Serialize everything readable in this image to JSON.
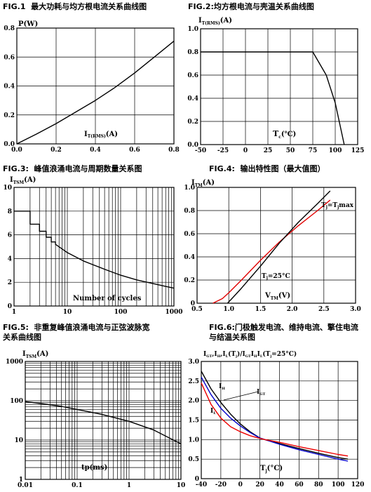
{
  "chart_data": [
    {
      "type": "line",
      "fig_label": "FIG.1",
      "title": "最大功耗与均方根电流关系曲线图",
      "ylabel": "P(W)",
      "xlabel_main": "I",
      "xlabel_sub": "T(RMS)",
      "xlabel_unit": "(A)",
      "xlim": [
        0,
        0.8
      ],
      "ylim": [
        0,
        0.8
      ],
      "xticks": [
        "0.0",
        "0.2",
        "0.4",
        "0.6",
        "0.8"
      ],
      "yticks": [
        "0.0",
        "0.2",
        "0.4",
        "0.6",
        "0.8"
      ],
      "grid": true,
      "series": [
        {
          "color": "#000000",
          "x": [
            0,
            0.1,
            0.2,
            0.3,
            0.4,
            0.5,
            0.6,
            0.7,
            0.8
          ],
          "y": [
            0,
            0.068,
            0.14,
            0.22,
            0.3,
            0.39,
            0.49,
            0.6,
            0.71
          ]
        }
      ]
    },
    {
      "type": "line",
      "fig_label": "FIG.2:",
      "title": "均方根电流与壳温关系曲线图",
      "ylabel_main": "I",
      "ylabel_sub": "T(RMS)",
      "ylabel_unit": "(A)",
      "xlabel_main": "T",
      "xlabel_sub": "c",
      "xlabel_unit": "(℃)",
      "xlim": [
        -50,
        125
      ],
      "ylim": [
        0,
        1.0
      ],
      "xticks": [
        "-50",
        "-25",
        "0",
        "25",
        "50",
        "75",
        "100",
        "125"
      ],
      "yticks": [
        "0.0",
        "0.2",
        "0.4",
        "0.6",
        "0.8",
        "1.0"
      ],
      "grid": true,
      "series": [
        {
          "color": "#000000",
          "x": [
            -50,
            75,
            90,
            100,
            110
          ],
          "y": [
            0.8,
            0.8,
            0.6,
            0.36,
            0.0
          ]
        }
      ]
    },
    {
      "type": "line",
      "fig_label": "FIG.3:",
      "title": "峰值浪涌电流与周期数量关系图",
      "ylabel_main": "I",
      "ylabel_sub": "TSM",
      "ylabel_unit": "(A)",
      "xlabel": "Number of cycles",
      "xscale": "log",
      "xlim": [
        1,
        1000
      ],
      "ylim": [
        0,
        10
      ],
      "xticks": [
        "1",
        "10",
        "100",
        "1000"
      ],
      "yticks": [
        "0",
        "2",
        "4",
        "6",
        "8",
        "10"
      ],
      "grid": true,
      "series": [
        {
          "color": "#000000",
          "x": [
            1,
            2,
            2,
            3,
            3,
            4,
            4,
            5,
            5,
            6,
            6,
            10,
            20,
            50,
            100,
            200,
            400,
            700,
            1000
          ],
          "y": [
            8.0,
            8.0,
            6.9,
            6.9,
            6.3,
            6.3,
            5.8,
            5.8,
            5.4,
            5.4,
            5.2,
            4.5,
            3.8,
            3.1,
            2.6,
            2.2,
            1.9,
            1.65,
            1.5
          ]
        }
      ]
    },
    {
      "type": "line",
      "fig_label": "FIG.4:",
      "title": "输出特性图（最大值图）",
      "ylabel_main": "I",
      "ylabel_sub": "TM",
      "ylabel_unit": "(A)",
      "xlabel_main": "V",
      "xlabel_sub": "TM",
      "xlabel_unit": "(V)",
      "xlim": [
        0.5,
        3.0
      ],
      "ylim": [
        0,
        1.0
      ],
      "xticks": [
        "0.5",
        "1.0",
        "1.5",
        "2.0",
        "2.5",
        "3.0"
      ],
      "yticks": [
        "0",
        "0.2",
        "0.4",
        "0.6",
        "0.8",
        "1.0"
      ],
      "grid": true,
      "series": [
        {
          "name": "T",
          "name_sub": "j",
          "name_tail": "=T",
          "name_tail_sub": "j",
          "name_end": "max",
          "color": "#e00000",
          "x": [
            0.75,
            0.9,
            1.0,
            1.2,
            1.5,
            1.8,
            2.1,
            2.4,
            2.6
          ],
          "y": [
            0.0,
            0.04,
            0.09,
            0.2,
            0.37,
            0.53,
            0.67,
            0.8,
            0.89
          ]
        },
        {
          "name": "T",
          "name_sub": "j",
          "name_tail": "=25°C",
          "color": "#000000",
          "x": [
            0.98,
            1.05,
            1.2,
            1.5,
            1.8,
            2.1,
            2.4,
            2.6
          ],
          "y": [
            0.0,
            0.04,
            0.13,
            0.32,
            0.52,
            0.7,
            0.86,
            0.97
          ]
        }
      ]
    },
    {
      "type": "line",
      "fig_label": "FIG.5:",
      "title": "非重复峰值浪涌电流与正弦波脉宽",
      "title_line2": "关系曲线图",
      "ylabel_main": "I",
      "ylabel_sub": "TSM",
      "ylabel_unit": "(A)",
      "xlabel": "tp(ms)",
      "xscale": "log",
      "yscale": "log",
      "xlim": [
        0.01,
        10
      ],
      "ylim": [
        1,
        1000
      ],
      "xticks": [
        "0.01",
        "0.1",
        "1",
        "10"
      ],
      "yticks": [
        "1",
        "10",
        "100",
        "1000"
      ],
      "grid": true,
      "series": [
        {
          "color": "#000000",
          "x": [
            0.01,
            0.02,
            0.05,
            0.1,
            0.3,
            1,
            3,
            10
          ],
          "y": [
            95,
            85,
            72,
            60,
            45,
            30,
            18,
            8
          ]
        }
      ]
    },
    {
      "type": "line",
      "fig_label": "FIG.6:",
      "title": "门极触发电流、维持电流、擎住电流",
      "title_line2": "与结温关系图",
      "ylabel": "I_GT,I_H,I_L(T_j)/I_GT,I_H,I_L(T_j=25°C)",
      "ylabel_parts": [
        "I",
        "GT",
        ",I",
        "H",
        ",I",
        "L",
        "(T",
        "j",
        ")/I",
        "GT",
        "I",
        "H",
        "I",
        "L",
        "(T",
        "j",
        "=25°C)"
      ],
      "xlabel_main": "T",
      "xlabel_sub": "j",
      "xlabel_unit": "(°C)",
      "xlim": [
        -40,
        120
      ],
      "ylim": [
        0,
        3.0
      ],
      "xticks": [
        "-40",
        "-20",
        "0",
        "20",
        "40",
        "60",
        "80",
        "100",
        "120"
      ],
      "yticks": [
        "0",
        "0.5",
        "1.0",
        "1.5",
        "2.0",
        "2.5",
        "3.0"
      ],
      "grid": true,
      "series": [
        {
          "name": "I",
          "name_sub": "GT",
          "color": "#000000",
          "x": [
            -40,
            -30,
            -20,
            -10,
            0,
            10,
            20,
            25,
            40,
            60,
            80,
            100,
            110
          ],
          "y": [
            2.75,
            2.3,
            1.95,
            1.65,
            1.4,
            1.2,
            1.04,
            1.0,
            0.9,
            0.77,
            0.65,
            0.54,
            0.5
          ]
        },
        {
          "name": "I",
          "name_sub": "H",
          "color": "#0000cc",
          "x": [
            -40,
            -30,
            -20,
            -10,
            0,
            10,
            20,
            25,
            40,
            60,
            80,
            100,
            110
          ],
          "y": [
            2.6,
            2.15,
            1.8,
            1.55,
            1.35,
            1.18,
            1.04,
            1.0,
            0.88,
            0.74,
            0.62,
            0.5,
            0.45
          ]
        },
        {
          "name": "I",
          "name_sub": "L",
          "color": "#ee0000",
          "x": [
            -40,
            -30,
            -20,
            -10,
            0,
            10,
            20,
            25,
            40,
            60,
            80,
            100,
            110
          ],
          "y": [
            2.45,
            1.9,
            1.55,
            1.33,
            1.2,
            1.1,
            1.03,
            1.0,
            0.93,
            0.82,
            0.72,
            0.62,
            0.58
          ]
        }
      ]
    }
  ]
}
